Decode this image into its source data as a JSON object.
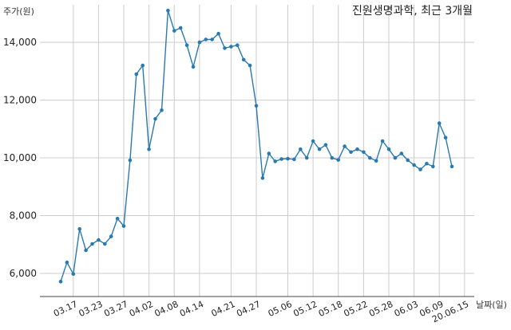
{
  "chart_data": {
    "type": "line",
    "title": "진원생명과학, 최근 3개월",
    "ylabel": "주가(원)",
    "xlabel": "날짜(일)",
    "ylim": [
      5200,
      15300
    ],
    "yticks": [
      6000,
      8000,
      10000,
      12000,
      14000
    ],
    "ytick_labels": [
      "6,000",
      "8,000",
      "10,000",
      "12,000",
      "14,000"
    ],
    "xtick_labels": [
      "03.17",
      "03.23",
      "03.27",
      "04.02",
      "04.08",
      "04.14",
      "04.21",
      "04.27",
      "05.06",
      "05.12",
      "05.18",
      "05.22",
      "05.28",
      "06.03",
      "06.09",
      "20.06.15"
    ],
    "xtick_indices": [
      2,
      6,
      10,
      14,
      18,
      22,
      27,
      31,
      36,
      40,
      44,
      48,
      52,
      56,
      60,
      64
    ],
    "grid": true,
    "color": "#2a7ab0",
    "series": [
      {
        "values": [
          5720,
          6380,
          5980,
          7540,
          6800,
          7020,
          7160,
          7020,
          7280,
          7900,
          7640,
          9920,
          12900,
          13200,
          10300,
          11350,
          11650,
          15100,
          14400,
          14500,
          13900,
          13150,
          14000,
          14100,
          14100,
          14300,
          13800,
          13850,
          13900,
          13400,
          13200,
          11800,
          9300,
          10150,
          9880,
          9960,
          9970,
          9950,
          10300,
          10000,
          10580,
          10300,
          10450,
          10000,
          9930,
          10400,
          10200,
          10300,
          10200,
          10000,
          9900,
          10580,
          10300,
          10000,
          10150,
          9920,
          9750,
          9600,
          9800,
          9700,
          11200,
          10700,
          9700
        ]
      }
    ]
  }
}
